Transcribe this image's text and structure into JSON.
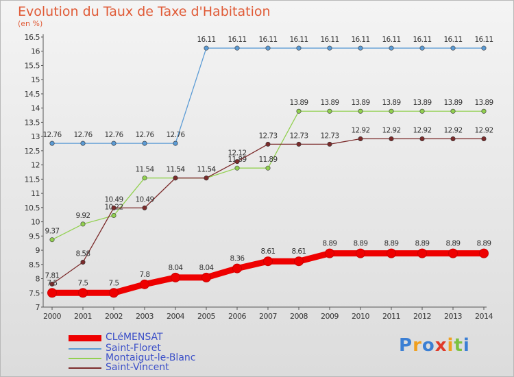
{
  "title": "Evolution du Taux de Taxe d'Habitation",
  "unit_label": "(en %)",
  "logo_text": "Proxiti",
  "chart_data": {
    "type": "line",
    "x": [
      "2000",
      "2001",
      "2002",
      "2003",
      "2004",
      "2005",
      "2006",
      "2007",
      "2008",
      "2009",
      "2010",
      "2011",
      "2012",
      "2013",
      "2014"
    ],
    "ylim": [
      7,
      16.5
    ],
    "ytick_step": 0.5,
    "grid": false,
    "legend_position": "bottom-left",
    "series": [
      {
        "name": "CLéMENSAT",
        "color": "#ee0000",
        "emphasis": true,
        "values": [
          7.5,
          7.5,
          7.5,
          7.8,
          8.04,
          8.04,
          8.36,
          8.61,
          8.61,
          8.89,
          8.89,
          8.89,
          8.89,
          8.89,
          8.89
        ],
        "labels": [
          "7.5",
          "7.5",
          "7.5",
          "7.8",
          "8.04",
          "8.04",
          "8.36",
          "8.61",
          "8.61",
          "8.89",
          "8.89",
          "8.89",
          "8.89",
          "8.89",
          "8.89"
        ]
      },
      {
        "name": "Saint-Floret",
        "color": "#5b9bd5",
        "emphasis": false,
        "values": [
          12.76,
          12.76,
          12.76,
          12.76,
          12.76,
          16.11,
          16.11,
          16.11,
          16.11,
          16.11,
          16.11,
          16.11,
          16.11,
          16.11,
          16.11
        ],
        "labels": [
          "12.76",
          "12.76",
          "12.76",
          "12.76",
          "12.76",
          "16.11",
          "16.11",
          "16.11",
          "16.11",
          "16.11",
          "16.11",
          "16.11",
          "16.11",
          "16.11",
          "16.11"
        ]
      },
      {
        "name": "Montaigut-le-Blanc",
        "color": "#92d050",
        "emphasis": false,
        "values": [
          9.37,
          9.92,
          10.22,
          11.54,
          11.54,
          11.54,
          11.89,
          11.89,
          13.89,
          13.89,
          13.89,
          13.89,
          13.89,
          13.89,
          13.89
        ],
        "labels": [
          "9.37",
          "9.92",
          "10.22",
          "11.54",
          "11.54",
          "11.54",
          "11.89",
          "11.89",
          "13.89",
          "13.89",
          "13.89",
          "13.89",
          "13.89",
          "13.89",
          "13.89"
        ]
      },
      {
        "name": "Saint-Vincent",
        "color": "#7b2b2b",
        "emphasis": false,
        "values": [
          7.81,
          8.58,
          10.49,
          10.49,
          11.54,
          11.54,
          12.12,
          12.73,
          12.73,
          12.73,
          12.92,
          12.92,
          12.92,
          12.92,
          12.92
        ],
        "labels": [
          "7.81",
          "8.58",
          "10.49",
          "10.49",
          "11.54",
          "11.54",
          "12.12",
          "12.73",
          "12.73",
          "12.73",
          "12.92",
          "12.92",
          "12.92",
          "12.92",
          "12.92"
        ]
      }
    ]
  }
}
